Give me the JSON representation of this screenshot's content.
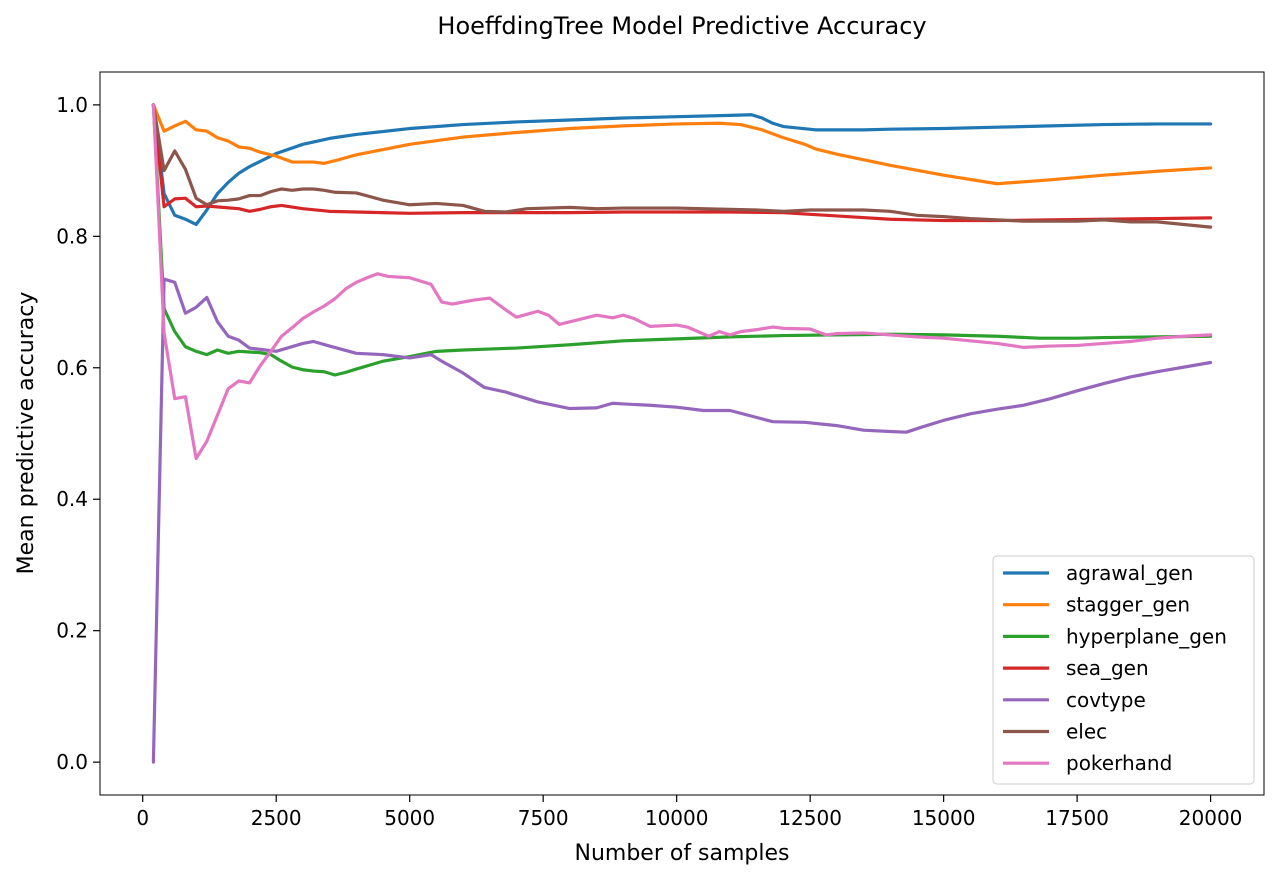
{
  "chart_data": {
    "type": "line",
    "title": "HoeffdingTree Model Predictive Accuracy",
    "xlabel": "Number of samples",
    "ylabel": "Mean predictive accuracy",
    "xlim": [
      -800,
      21000
    ],
    "ylim": [
      -0.05,
      1.05
    ],
    "xticks": [
      0,
      2500,
      5000,
      7500,
      10000,
      12500,
      15000,
      17500,
      20000
    ],
    "xtick_labels": [
      "0",
      "2500",
      "5000",
      "7500",
      "10000",
      "12500",
      "15000",
      "17500",
      "20000"
    ],
    "yticks": [
      0.0,
      0.2,
      0.4,
      0.6,
      0.8,
      1.0
    ],
    "ytick_labels": [
      "0.0",
      "0.2",
      "0.4",
      "0.6",
      "0.8",
      "1.0"
    ],
    "grid": false,
    "legend_position": "lower-right",
    "series": [
      {
        "name": "agrawal_gen",
        "color": "#1f77b4",
        "x": [
          200,
          400,
          600,
          800,
          1000,
          1200,
          1400,
          1600,
          1800,
          2000,
          2500,
          3000,
          3500,
          4000,
          5000,
          6000,
          7000,
          8000,
          9000,
          10000,
          11000,
          11400,
          11600,
          11800,
          12000,
          12600,
          13000,
          13500,
          14000,
          15000,
          16000,
          17000,
          18000,
          19000,
          20000
        ],
        "y": [
          1.0,
          0.865,
          0.832,
          0.826,
          0.818,
          0.84,
          0.865,
          0.882,
          0.896,
          0.906,
          0.926,
          0.94,
          0.949,
          0.955,
          0.964,
          0.97,
          0.974,
          0.977,
          0.98,
          0.982,
          0.984,
          0.985,
          0.98,
          0.972,
          0.967,
          0.962,
          0.962,
          0.962,
          0.963,
          0.964,
          0.966,
          0.968,
          0.97,
          0.971,
          0.971
        ]
      },
      {
        "name": "stagger_gen",
        "color": "#ff7f0e",
        "x": [
          200,
          400,
          600,
          800,
          1000,
          1200,
          1400,
          1600,
          1800,
          2000,
          2200,
          2500,
          2800,
          3000,
          3200,
          3400,
          3600,
          4000,
          5000,
          6000,
          7000,
          8000,
          9000,
          10000,
          10800,
          11200,
          11600,
          12000,
          12400,
          12600,
          13000,
          14000,
          15000,
          16000,
          17000,
          18000,
          19000,
          20000
        ],
        "y": [
          1.0,
          0.96,
          0.968,
          0.975,
          0.962,
          0.96,
          0.95,
          0.945,
          0.936,
          0.934,
          0.928,
          0.922,
          0.913,
          0.913,
          0.913,
          0.911,
          0.915,
          0.924,
          0.94,
          0.951,
          0.958,
          0.964,
          0.968,
          0.971,
          0.972,
          0.97,
          0.962,
          0.95,
          0.94,
          0.933,
          0.925,
          0.908,
          0.893,
          0.88,
          0.886,
          0.893,
          0.899,
          0.904
        ]
      },
      {
        "name": "hyperplane_gen",
        "color": "#2ca02c",
        "x": [
          200,
          400,
          600,
          800,
          1000,
          1200,
          1400,
          1600,
          1800,
          2000,
          2200,
          2400,
          2600,
          2800,
          3000,
          3200,
          3400,
          3600,
          3800,
          4000,
          4500,
          5000,
          5500,
          6000,
          7000,
          8000,
          9000,
          10000,
          11000,
          12000,
          13000,
          14000,
          15000,
          16000,
          16800,
          17500,
          18000,
          19000,
          20000
        ],
        "y": [
          1.0,
          0.69,
          0.655,
          0.632,
          0.625,
          0.62,
          0.627,
          0.622,
          0.625,
          0.624,
          0.623,
          0.62,
          0.61,
          0.601,
          0.597,
          0.595,
          0.594,
          0.589,
          0.593,
          0.598,
          0.61,
          0.617,
          0.625,
          0.627,
          0.63,
          0.635,
          0.641,
          0.644,
          0.647,
          0.649,
          0.65,
          0.651,
          0.65,
          0.648,
          0.645,
          0.645,
          0.646,
          0.647,
          0.648
        ]
      },
      {
        "name": "sea_gen",
        "color": "#d62728",
        "x": [
          200,
          400,
          600,
          800,
          1000,
          1200,
          1500,
          1800,
          2000,
          2200,
          2400,
          2600,
          3000,
          3500,
          4000,
          5000,
          6000,
          7000,
          8000,
          9000,
          10000,
          11000,
          12000,
          13000,
          14000,
          15000,
          16000,
          17000,
          18000,
          19000,
          20000
        ],
        "y": [
          1.0,
          0.845,
          0.857,
          0.858,
          0.845,
          0.846,
          0.844,
          0.842,
          0.838,
          0.841,
          0.845,
          0.847,
          0.842,
          0.838,
          0.837,
          0.835,
          0.836,
          0.836,
          0.836,
          0.837,
          0.837,
          0.837,
          0.836,
          0.831,
          0.826,
          0.824,
          0.824,
          0.825,
          0.826,
          0.827,
          0.828
        ]
      },
      {
        "name": "covtype",
        "color": "#9467bd",
        "x": [
          200,
          400,
          600,
          800,
          1000,
          1200,
          1400,
          1600,
          1800,
          2000,
          2200,
          2500,
          3000,
          3200,
          3500,
          4000,
          4500,
          5000,
          5400,
          5600,
          6000,
          6400,
          6800,
          7400,
          8000,
          8500,
          8800,
          9000,
          9500,
          10000,
          10500,
          11000,
          11800,
          12400,
          13000,
          13500,
          14000,
          14300,
          14600,
          15000,
          15500,
          16000,
          16500,
          17000,
          17500,
          18000,
          18500,
          19000,
          19500,
          20000
        ],
        "y": [
          0.0,
          0.735,
          0.73,
          0.683,
          0.692,
          0.707,
          0.67,
          0.648,
          0.642,
          0.63,
          0.628,
          0.625,
          0.637,
          0.64,
          0.633,
          0.622,
          0.62,
          0.615,
          0.62,
          0.61,
          0.592,
          0.57,
          0.563,
          0.548,
          0.538,
          0.539,
          0.546,
          0.545,
          0.543,
          0.54,
          0.535,
          0.535,
          0.518,
          0.517,
          0.512,
          0.505,
          0.503,
          0.502,
          0.51,
          0.52,
          0.53,
          0.537,
          0.543,
          0.553,
          0.565,
          0.576,
          0.586,
          0.594,
          0.601,
          0.608
        ]
      },
      {
        "name": "elec",
        "color": "#8c564b",
        "x": [
          200,
          400,
          600,
          800,
          1000,
          1200,
          1400,
          1600,
          1800,
          2000,
          2200,
          2400,
          2600,
          2800,
          3000,
          3200,
          3400,
          3600,
          4000,
          4500,
          5000,
          5500,
          6000,
          6400,
          6800,
          7200,
          8000,
          8500,
          9000,
          9500,
          10000,
          11000,
          11500,
          12000,
          12500,
          13000,
          13500,
          14000,
          14500,
          15000,
          15500,
          16000,
          16500,
          17000,
          17500,
          18000,
          18500,
          19000,
          19500,
          20000
        ],
        "y": [
          1.0,
          0.9,
          0.93,
          0.902,
          0.858,
          0.848,
          0.854,
          0.855,
          0.857,
          0.862,
          0.862,
          0.868,
          0.872,
          0.87,
          0.872,
          0.872,
          0.87,
          0.867,
          0.866,
          0.855,
          0.848,
          0.85,
          0.847,
          0.838,
          0.837,
          0.842,
          0.844,
          0.842,
          0.843,
          0.843,
          0.843,
          0.841,
          0.84,
          0.838,
          0.84,
          0.84,
          0.84,
          0.838,
          0.832,
          0.83,
          0.827,
          0.825,
          0.823,
          0.823,
          0.823,
          0.825,
          0.822,
          0.822,
          0.818,
          0.814
        ]
      },
      {
        "name": "pokerhand",
        "color": "#e377c2",
        "x": [
          200,
          300,
          400,
          600,
          800,
          1000,
          1200,
          1400,
          1600,
          1800,
          2000,
          2200,
          2400,
          2600,
          2800,
          3000,
          3200,
          3400,
          3600,
          3800,
          4000,
          4200,
          4400,
          4600,
          5000,
          5400,
          5600,
          5800,
          6000,
          6200,
          6500,
          6800,
          7000,
          7400,
          7600,
          7800,
          8000,
          8500,
          8800,
          9000,
          9200,
          9500,
          10000,
          10200,
          10600,
          10800,
          11000,
          11200,
          11500,
          11800,
          12000,
          12500,
          12800,
          13000,
          13500,
          14000,
          14500,
          15000,
          15500,
          16000,
          16500,
          17000,
          17500,
          18000,
          18500,
          19000,
          19500,
          20000
        ],
        "y": [
          1.0,
          0.83,
          0.653,
          0.553,
          0.556,
          0.462,
          0.488,
          0.528,
          0.568,
          0.58,
          0.577,
          0.603,
          0.625,
          0.648,
          0.661,
          0.675,
          0.685,
          0.694,
          0.705,
          0.72,
          0.73,
          0.737,
          0.743,
          0.739,
          0.737,
          0.727,
          0.7,
          0.697,
          0.7,
          0.703,
          0.706,
          0.688,
          0.677,
          0.686,
          0.68,
          0.666,
          0.67,
          0.68,
          0.676,
          0.68,
          0.675,
          0.663,
          0.665,
          0.662,
          0.648,
          0.655,
          0.65,
          0.655,
          0.658,
          0.662,
          0.66,
          0.659,
          0.65,
          0.652,
          0.653,
          0.65,
          0.647,
          0.645,
          0.641,
          0.637,
          0.631,
          0.633,
          0.634,
          0.637,
          0.64,
          0.645,
          0.648,
          0.65
        ]
      }
    ]
  }
}
